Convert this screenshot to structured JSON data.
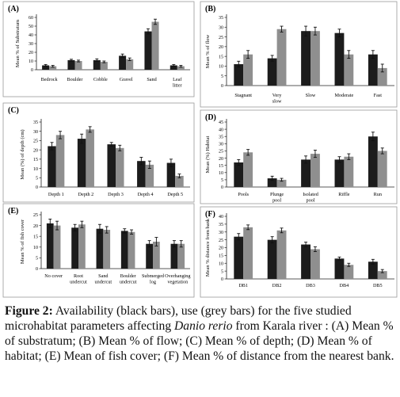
{
  "figure_label": "Figure 2:",
  "caption_pre": " Availability (black bars), use (grey bars) for the five studied microhabitat parameters affecting ",
  "caption_species": "Danio rerio",
  "caption_post": " from Karala river : (A) Mean % of substratum; (B) Mean % of flow; (C) Mean % of depth; (D) Mean % of habitat; (E) Mean of fish cover; (F) Mean % of distance from the nearest bank.",
  "colors": {
    "availability": "#1c1c1c",
    "use": "#8f8f8f",
    "error_bar": "#111111",
    "frame": "#9a9a9a"
  },
  "chart_data": [
    {
      "type": "bar",
      "panel": "(A)",
      "ylabel": "Mean % of Substratum",
      "ylim": [
        0,
        60
      ],
      "yticks": [
        0,
        10,
        20,
        30,
        40,
        50,
        60
      ],
      "categories": [
        "Bedrock",
        "Boulder",
        "Cobble",
        "Gravel",
        "Sand",
        "Leaf litter"
      ],
      "series": [
        {
          "key": "availability",
          "values": [
            5,
            11,
            11,
            16,
            44,
            5
          ],
          "err": [
            1,
            1,
            1.5,
            2,
            3,
            1
          ]
        },
        {
          "key": "use",
          "values": [
            4,
            10,
            9,
            12,
            55,
            4
          ],
          "err": [
            1,
            1,
            1,
            1.5,
            3,
            1
          ]
        }
      ]
    },
    {
      "type": "bar",
      "panel": "(B)",
      "ylabel": "Mean % of flow",
      "ylim": [
        0,
        35
      ],
      "yticks": [
        0,
        5,
        10,
        15,
        20,
        25,
        30,
        35
      ],
      "categories": [
        "Stagnant",
        "Very slow",
        "Slow",
        "Moderate",
        "Fast"
      ],
      "series": [
        {
          "key": "availability",
          "values": [
            11,
            14,
            28,
            27,
            16
          ],
          "err": [
            1.5,
            1.5,
            2.5,
            2,
            2
          ]
        },
        {
          "key": "use",
          "values": [
            16,
            29,
            28,
            16,
            9
          ],
          "err": [
            2,
            1.5,
            2,
            2,
            2
          ]
        }
      ]
    },
    {
      "type": "bar",
      "panel": "(C)",
      "ylabel": "Mean (%) of depth (cm)",
      "ylim": [
        0,
        35
      ],
      "yticks": [
        0,
        5,
        10,
        15,
        20,
        25,
        30,
        35
      ],
      "categories": [
        "Depth 1",
        "Depth 2",
        "Depth 3",
        "Depth 4",
        "Depth 5"
      ],
      "series": [
        {
          "key": "availability",
          "values": [
            22,
            26,
            23,
            14,
            13
          ],
          "err": [
            2,
            2.5,
            1,
            2,
            2
          ]
        },
        {
          "key": "use",
          "values": [
            28,
            31,
            21,
            12,
            6
          ],
          "err": [
            2,
            1.5,
            1.5,
            2,
            1
          ]
        }
      ]
    },
    {
      "type": "bar",
      "panel": "(D)",
      "ylabel": "Mean (%) Habitat",
      "ylim": [
        0,
        45
      ],
      "yticks": [
        0,
        5,
        10,
        15,
        20,
        25,
        30,
        35,
        40,
        45
      ],
      "categories": [
        "Pools",
        "Plunge pool",
        "Isolated pool",
        "Riffle",
        "Run"
      ],
      "series": [
        {
          "key": "availability",
          "values": [
            17,
            6,
            19,
            19,
            35
          ],
          "err": [
            2,
            1.5,
            2.5,
            2,
            3
          ]
        },
        {
          "key": "use",
          "values": [
            24,
            5,
            23,
            21,
            25
          ],
          "err": [
            2,
            1,
            2.5,
            2,
            2
          ]
        }
      ]
    },
    {
      "type": "bar",
      "panel": "(E)",
      "ylabel": "Mean % of fish cover",
      "ylim": [
        0,
        25
      ],
      "yticks": [
        0,
        5,
        10,
        15,
        20,
        25
      ],
      "categories": [
        "No cover",
        "Root undercut",
        "Sand undercut",
        "Boulder undercut",
        "Submerged log",
        "Overhanging vegetation"
      ],
      "series": [
        {
          "key": "availability",
          "values": [
            21,
            19,
            18.5,
            17.5,
            11.5,
            11.5
          ],
          "err": [
            2,
            1.5,
            2,
            1,
            1.5,
            1.5
          ]
        },
        {
          "key": "use",
          "values": [
            20,
            20.5,
            18,
            17,
            12.5,
            11.5
          ],
          "err": [
            2,
            1.5,
            1.5,
            1,
            2,
            1.5
          ]
        }
      ]
    },
    {
      "type": "bar",
      "panel": "(F)",
      "ylabel": "Mean % distance from bank",
      "ylim": [
        0,
        40
      ],
      "yticks": [
        0,
        5,
        10,
        15,
        20,
        25,
        30,
        35,
        40
      ],
      "categories": [
        "DB1",
        "DB2",
        "DB3",
        "DB4",
        "DB5"
      ],
      "series": [
        {
          "key": "availability",
          "values": [
            27,
            25,
            22,
            13,
            11
          ],
          "err": [
            2,
            2,
            1.5,
            1,
            1.5
          ]
        },
        {
          "key": "use",
          "values": [
            33,
            31,
            19,
            9,
            5
          ],
          "err": [
            1.5,
            1.5,
            1.5,
            1,
            1
          ]
        }
      ]
    }
  ]
}
